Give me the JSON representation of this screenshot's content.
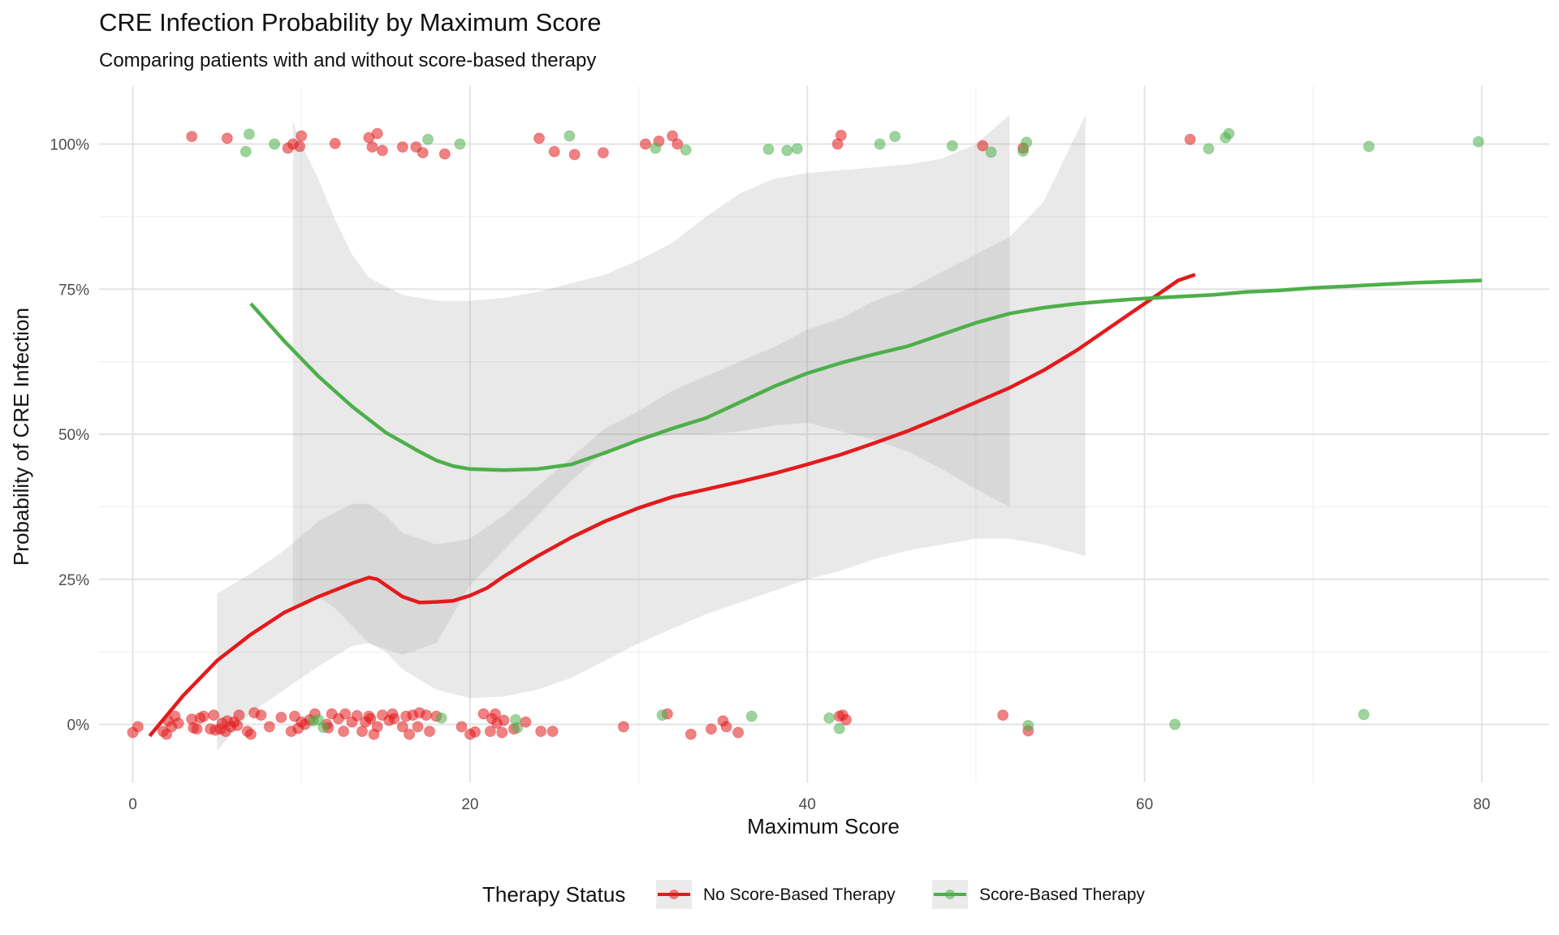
{
  "chart_data": {
    "type": "scatter",
    "title": "CRE Infection Probability by Maximum Score",
    "subtitle": "Comparing patients with and without score-based therapy",
    "xlabel": "Maximum Score",
    "ylabel": "Probability of CRE Infection",
    "xlim": [
      -2,
      84
    ],
    "ylim": [
      -0.1,
      1.1
    ],
    "x_ticks": [
      0,
      20,
      40,
      60,
      80
    ],
    "x_tick_labels": [
      "0",
      "20",
      "40",
      "60",
      "80"
    ],
    "y_ticks": [
      0,
      0.25,
      0.5,
      0.75,
      1
    ],
    "y_tick_labels": [
      "0%",
      "25%",
      "50%",
      "75%",
      "100%"
    ],
    "grid": true,
    "legend": {
      "title": "Therapy Status",
      "position": "bottom"
    },
    "series": [
      {
        "name": "No Score-Based Therapy",
        "color": "#E41A1C",
        "points": [
          [
            0,
            -0.014
          ],
          [
            0.3,
            -0.004
          ],
          [
            1.8,
            -0.012
          ],
          [
            2.0,
            -0.017
          ],
          [
            2.1,
            0.006
          ],
          [
            2.3,
            -0.004
          ],
          [
            2.5,
            0.014
          ],
          [
            2.7,
            0.002
          ],
          [
            3.5,
            0.009
          ],
          [
            3.6,
            -0.006
          ],
          [
            3.8,
            -0.008
          ],
          [
            4.0,
            0.011
          ],
          [
            4.2,
            0.014
          ],
          [
            4.6,
            -0.008
          ],
          [
            4.8,
            0.016
          ],
          [
            4.9,
            -0.01
          ],
          [
            5.2,
            -0.008
          ],
          [
            5.3,
            0.002
          ],
          [
            5.5,
            -0.012
          ],
          [
            5.6,
            0.006
          ],
          [
            5.8,
            -0.004
          ],
          [
            6.0,
            0.004
          ],
          [
            6.2,
            -0.002
          ],
          [
            6.3,
            0.016
          ],
          [
            6.8,
            -0.012
          ],
          [
            7.0,
            -0.017
          ],
          [
            7.2,
            0.02
          ],
          [
            7.6,
            0.016
          ],
          [
            8.1,
            -0.004
          ],
          [
            8.8,
            0.012
          ],
          [
            9.4,
            -0.012
          ],
          [
            9.6,
            0.014
          ],
          [
            9.8,
            -0.007
          ],
          [
            10.0,
            0.004
          ],
          [
            10.2,
            0.0
          ],
          [
            10.5,
            0.008
          ],
          [
            10.8,
            0.018
          ],
          [
            11.5,
            0.0
          ],
          [
            11.6,
            -0.006
          ],
          [
            11.8,
            0.018
          ],
          [
            12.2,
            0.01
          ],
          [
            12.5,
            -0.012
          ],
          [
            12.6,
            0.018
          ],
          [
            13.0,
            0.004
          ],
          [
            13.3,
            0.015
          ],
          [
            13.6,
            -0.012
          ],
          [
            13.8,
            0.004
          ],
          [
            14.0,
            0.014
          ],
          [
            14.1,
            0.01
          ],
          [
            14.3,
            -0.017
          ],
          [
            14.5,
            -0.004
          ],
          [
            14.8,
            0.016
          ],
          [
            15.2,
            0.007
          ],
          [
            15.4,
            0.018
          ],
          [
            15.5,
            0.01
          ],
          [
            16.0,
            -0.004
          ],
          [
            16.2,
            0.014
          ],
          [
            16.4,
            -0.017
          ],
          [
            16.6,
            0.016
          ],
          [
            16.9,
            -0.004
          ],
          [
            17.0,
            0.02
          ],
          [
            17.4,
            0.016
          ],
          [
            17.6,
            -0.012
          ],
          [
            18.0,
            0.014
          ],
          [
            19.5,
            -0.004
          ],
          [
            20.0,
            -0.017
          ],
          [
            20.3,
            -0.013
          ],
          [
            20.8,
            0.018
          ],
          [
            21.2,
            -0.012
          ],
          [
            21.3,
            0.01
          ],
          [
            21.5,
            0.018
          ],
          [
            21.6,
            0.002
          ],
          [
            21.9,
            -0.014
          ],
          [
            22.0,
            0.007
          ],
          [
            22.6,
            -0.008
          ],
          [
            23.3,
            0.004
          ],
          [
            24.2,
            -0.012
          ],
          [
            24.9,
            -0.012
          ],
          [
            29.1,
            -0.004
          ],
          [
            31.7,
            0.018
          ],
          [
            33.1,
            -0.017
          ],
          [
            34.3,
            -0.008
          ],
          [
            35.0,
            0.006
          ],
          [
            35.2,
            -0.004
          ],
          [
            35.9,
            -0.014
          ],
          [
            41.9,
            0.014
          ],
          [
            42.1,
            0.016
          ],
          [
            42.3,
            0.008
          ],
          [
            51.6,
            0.016
          ],
          [
            53.1,
            -0.011
          ],
          [
            3.5,
            1.013
          ],
          [
            5.6,
            1.01
          ],
          [
            9.2,
            0.993
          ],
          [
            9.5,
            1.0
          ],
          [
            9.9,
            0.996
          ],
          [
            10.0,
            1.014
          ],
          [
            12.0,
            1.001
          ],
          [
            14.0,
            1.011
          ],
          [
            14.2,
            0.995
          ],
          [
            14.5,
            1.018
          ],
          [
            14.8,
            0.989
          ],
          [
            16.0,
            0.995
          ],
          [
            16.8,
            0.995
          ],
          [
            17.2,
            0.985
          ],
          [
            18.5,
            0.983
          ],
          [
            24.1,
            1.01
          ],
          [
            25.0,
            0.987
          ],
          [
            26.2,
            0.982
          ],
          [
            27.9,
            0.985
          ],
          [
            30.4,
            1.0
          ],
          [
            31.2,
            1.005
          ],
          [
            32.0,
            1.014
          ],
          [
            32.3,
            1.0
          ],
          [
            41.8,
            1.0
          ],
          [
            42.0,
            1.015
          ],
          [
            50.4,
            0.997
          ],
          [
            52.8,
            0.993
          ],
          [
            62.7,
            1.008
          ]
        ],
        "smooth_x": [
          1,
          3,
          5,
          7,
          9,
          11,
          13,
          14,
          14.5,
          16,
          17,
          18,
          19,
          20,
          21,
          22,
          24,
          26,
          28,
          30,
          32,
          34,
          36,
          38,
          40,
          42,
          44,
          46,
          48,
          50,
          52,
          54,
          56,
          58,
          60,
          62,
          63
        ],
        "smooth_y": [
          -0.02,
          0.05,
          0.11,
          0.155,
          0.193,
          0.22,
          0.243,
          0.253,
          0.25,
          0.22,
          0.21,
          0.211,
          0.213,
          0.222,
          0.235,
          0.255,
          0.29,
          0.322,
          0.35,
          0.373,
          0.392,
          0.405,
          0.418,
          0.432,
          0.448,
          0.465,
          0.485,
          0.506,
          0.53,
          0.555,
          0.58,
          0.61,
          0.645,
          0.685,
          0.725,
          0.765,
          0.775
        ],
        "band_x": [
          5,
          7,
          9,
          11,
          13,
          14,
          15,
          16,
          18,
          20,
          22,
          24,
          26,
          28,
          30,
          32,
          34,
          36,
          38,
          40,
          42,
          44,
          46,
          48,
          50,
          52,
          54,
          56.5
        ],
        "band_lo": [
          -0.045,
          0.02,
          0.06,
          0.1,
          0.135,
          0.14,
          0.125,
          0.095,
          0.06,
          0.045,
          0.048,
          0.06,
          0.08,
          0.11,
          0.14,
          0.165,
          0.19,
          0.21,
          0.23,
          0.25,
          0.265,
          0.285,
          0.3,
          0.31,
          0.32,
          0.32,
          0.31,
          0.29
        ],
        "band_hi": [
          0.225,
          0.26,
          0.3,
          0.35,
          0.38,
          0.38,
          0.36,
          0.33,
          0.31,
          0.32,
          0.36,
          0.41,
          0.46,
          0.51,
          0.54,
          0.575,
          0.6,
          0.625,
          0.65,
          0.68,
          0.7,
          0.73,
          0.75,
          0.78,
          0.81,
          0.84,
          0.9,
          1.05
        ]
      },
      {
        "name": "Score-Based Therapy",
        "color": "#4DAF4A",
        "points": [
          [
            6.7,
            0.987
          ],
          [
            6.9,
            1.017
          ],
          [
            8.4,
            1.0
          ],
          [
            17.5,
            1.008
          ],
          [
            19.4,
            1.0
          ],
          [
            25.9,
            1.014
          ],
          [
            31.0,
            0.993
          ],
          [
            32.8,
            0.99
          ],
          [
            37.7,
            0.991
          ],
          [
            38.8,
            0.989
          ],
          [
            39.4,
            0.992
          ],
          [
            44.3,
            1.0
          ],
          [
            45.2,
            1.013
          ],
          [
            48.6,
            0.997
          ],
          [
            50.9,
            0.986
          ],
          [
            52.8,
            0.988
          ],
          [
            53.0,
            1.003
          ],
          [
            63.8,
            0.992
          ],
          [
            64.8,
            1.011
          ],
          [
            65.0,
            1.018
          ],
          [
            73.3,
            0.996
          ],
          [
            79.8,
            1.004
          ],
          [
            10.7,
            0.006
          ],
          [
            11.0,
            0.008
          ],
          [
            11.3,
            -0.005
          ],
          [
            18.3,
            0.011
          ],
          [
            22.7,
            0.008
          ],
          [
            22.8,
            -0.006
          ],
          [
            31.4,
            0.016
          ],
          [
            36.7,
            0.014
          ],
          [
            41.3,
            0.011
          ],
          [
            41.9,
            -0.007
          ],
          [
            53.1,
            -0.002
          ],
          [
            61.8,
            0.0
          ],
          [
            73.0,
            0.017
          ]
        ],
        "smooth_x": [
          7,
          9,
          11,
          13,
          15,
          17,
          18,
          19,
          20,
          22,
          24,
          26,
          28,
          30,
          32,
          34,
          36,
          38,
          40,
          42,
          44,
          46,
          48,
          50,
          52,
          54,
          56,
          58,
          60,
          62,
          64,
          66,
          68,
          70,
          72,
          74,
          76,
          78,
          80
        ],
        "smooth_y": [
          0.725,
          0.66,
          0.6,
          0.548,
          0.503,
          0.47,
          0.455,
          0.445,
          0.44,
          0.438,
          0.44,
          0.448,
          0.468,
          0.49,
          0.51,
          0.528,
          0.555,
          0.582,
          0.605,
          0.623,
          0.638,
          0.652,
          0.672,
          0.692,
          0.708,
          0.718,
          0.725,
          0.73,
          0.734,
          0.737,
          0.74,
          0.745,
          0.748,
          0.752,
          0.755,
          0.758,
          0.761,
          0.763,
          0.765
        ],
        "band_x": [
          9.5,
          10,
          11,
          12,
          13,
          14,
          16,
          18,
          20,
          22,
          24,
          26,
          28,
          30,
          32,
          34,
          36,
          38,
          40,
          42,
          44,
          46,
          48,
          50,
          52
        ],
        "band_lo": [
          0.2,
          0.21,
          0.22,
          0.2,
          0.17,
          0.14,
          0.12,
          0.14,
          0.24,
          0.3,
          0.36,
          0.42,
          0.47,
          0.49,
          0.5,
          0.5,
          0.505,
          0.515,
          0.52,
          0.505,
          0.49,
          0.47,
          0.44,
          0.405,
          0.375
        ],
        "band_hi": [
          1.04,
          1.0,
          0.94,
          0.87,
          0.81,
          0.77,
          0.74,
          0.73,
          0.73,
          0.735,
          0.745,
          0.76,
          0.775,
          0.8,
          0.83,
          0.875,
          0.915,
          0.94,
          0.95,
          0.955,
          0.96,
          0.965,
          0.975,
          1.0,
          1.05
        ]
      }
    ]
  }
}
